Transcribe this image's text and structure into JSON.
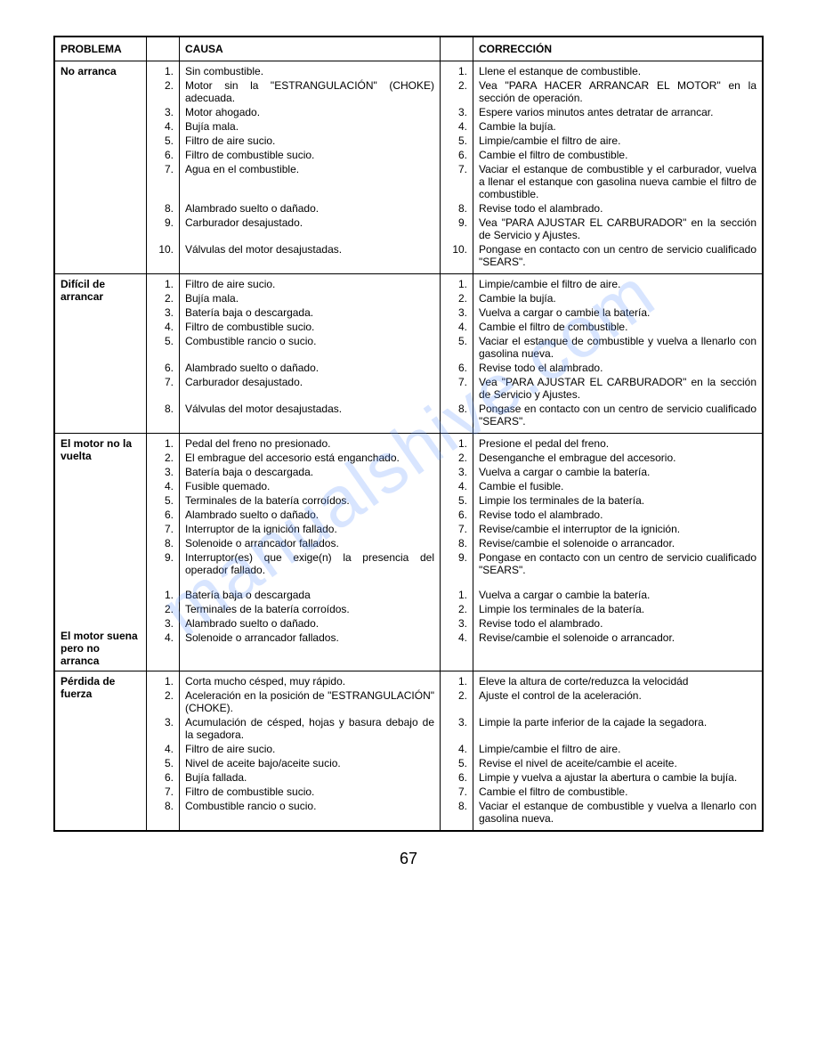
{
  "watermark": "manualshive.com",
  "pageNumber": "67",
  "headers": {
    "problema": "PROBLEMA",
    "causa": "CAUSA",
    "correccion": "CORRECCIÓN"
  },
  "sections": [
    {
      "problem": "No arranca",
      "items": [
        {
          "n": "1.",
          "cause": "Sin combustible.",
          "corr": "Llene el estanque de combustible."
        },
        {
          "n": "2.",
          "cause": "Motor sin la \"ESTRANGULACIÓN\" (CHOKE) adecuada.",
          "corr": "Vea \"PARA HACER ARRANCAR EL MOTOR\" en la sección de operación."
        },
        {
          "n": "3.",
          "cause": "Motor ahogado.",
          "corr": "Espere varios minutos antes detratar de arrancar."
        },
        {
          "n": "4.",
          "cause": "Bujía mala.",
          "corr": "Cambie la bujía."
        },
        {
          "n": "5.",
          "cause": "Filtro de aire sucio.",
          "corr": "Limpie/cambie el filtro de aire."
        },
        {
          "n": "6.",
          "cause": "Filtro de combustible sucio.",
          "corr": "Cambie el filtro de combustible."
        },
        {
          "n": "7.",
          "cause": "Agua en el combustible.",
          "corr": "Vaciar el estanque de combustible y el carburador, vuelva a llenar el estanque con gasolina nueva cambie el filtro de combustible."
        },
        {
          "n": "8.",
          "cause": "Alambrado suelto o dañado.",
          "corr": "Revise todo el alambrado."
        },
        {
          "n": "9.",
          "cause": "Carburador desajustado.",
          "corr": "Vea \"PARA AJUSTAR EL CARBURADOR\" en la sección de Servicio y Ajustes."
        },
        {
          "n": "10.",
          "cause": "Válvulas del motor desajustadas.",
          "corr": "Pongase en contacto con un centro de servicio cualificado \"SEARS\"."
        }
      ]
    },
    {
      "problem": "Difícil de arrancar",
      "items": [
        {
          "n": "1.",
          "cause": "Filtro de aire sucio.",
          "corr": "Limpie/cambie el filtro de aire."
        },
        {
          "n": "2.",
          "cause": "Bujía mala.",
          "corr": "Cambie la bujía."
        },
        {
          "n": "3.",
          "cause": "Batería baja o descargada.",
          "corr": "Vuelva a cargar o cambie la batería."
        },
        {
          "n": "4.",
          "cause": "Filtro de combustible sucio.",
          "corr": "Cambie el filtro de combustible."
        },
        {
          "n": "5.",
          "cause": "Combustible rancio o sucio.",
          "corr": "Vaciar el estanque de combustible y vuelva a llenarlo con gasolina nueva."
        },
        {
          "n": "6.",
          "cause": "Alambrado suelto o dañado.",
          "corr": "Revise todo el alambrado."
        },
        {
          "n": "7.",
          "cause": "Carburador desajustado.",
          "corr": "Vea \"PARA AJUSTAR EL CARBURADOR\" en la sección de Servicio y Ajustes."
        },
        {
          "n": "8.",
          "cause": "Válvulas del motor desajustadas.",
          "corr": "Pongase en contacto con un centro de servicio cualificado \"SEARS\"."
        }
      ]
    },
    {
      "problem": "El motor no la vuelta",
      "items": [
        {
          "n": "1.",
          "cause": "Pedal del freno no presionado.",
          "corr": "Presione el pedal del freno."
        },
        {
          "n": "2.",
          "cause": "El embrague del accesorio está enganchado.",
          "corr": "Desenganche el embrague del accesorio."
        },
        {
          "n": "3.",
          "cause": "Batería baja o descargada.",
          "corr": "Vuelva a cargar o cambie la batería."
        },
        {
          "n": "4.",
          "cause": "Fusible quemado.",
          "corr": "Cambie el fusible."
        },
        {
          "n": "5.",
          "cause": "Terminales de la batería corroídos.",
          "corr": "Limpie los terminales de la batería."
        },
        {
          "n": "6.",
          "cause": "Alambrado suelto o dañado.",
          "corr": "Revise todo el alambrado."
        },
        {
          "n": "7.",
          "cause": "Interruptor de la ignición fallado.",
          "corr": "Revise/cambie el interruptor de la ignición."
        },
        {
          "n": "8.",
          "cause": "Solenoide o arrancador fallados.",
          "corr": "Revise/cambie el solenoide o arrancador."
        },
        {
          "n": "9.",
          "cause": "Interruptor(es) que exige(n) la presencia del operador fallado.",
          "corr": "Pongase en contacto con un centro de servicio cualificado \"SEARS\"."
        }
      ],
      "problem2": "El motor suena pero no arranca",
      "items2": [
        {
          "n": "1.",
          "cause": "Batería baja o descargada",
          "corr": "Vuelva a cargar o cambie la batería."
        },
        {
          "n": "2.",
          "cause": "Terminales de la batería corroídos.",
          "corr": "Limpie los terminales de la batería."
        },
        {
          "n": "3.",
          "cause": "Alambrado suelto o dañado.",
          "corr": "Revise todo el alambrado."
        },
        {
          "n": "4.",
          "cause": "Solenoide o arrancador fallados.",
          "corr": "Revise/cambie el solenoide o arrancador."
        }
      ]
    },
    {
      "problem": "Pérdida de fuerza",
      "items": [
        {
          "n": "1.",
          "cause": "Corta mucho césped, muy rápido.",
          "corr": "Eleve la altura de corte/reduzca la velocidád"
        },
        {
          "n": "2.",
          "cause": "Aceleración en la posición de \"ESTRANGULACIÓN\" (CHOKE).",
          "corr": "Ajuste el control de la aceleración."
        },
        {
          "n": "3.",
          "cause": "Acumulación de césped, hojas y basura debajo de la segadora.",
          "corr": "Limpie la parte inferior de la cajade la segadora."
        },
        {
          "n": "4.",
          "cause": "Filtro de aire sucio.",
          "corr": "Limpie/cambie el filtro de aire."
        },
        {
          "n": "5.",
          "cause": "Nivel de aceite bajo/aceite sucio.",
          "corr": "Revise el nivel de aceite/cambie el aceite."
        },
        {
          "n": "6.",
          "cause": "Bujía fallada.",
          "corr": "Limpie y vuelva a ajustar la abertura o cambie la bujía."
        },
        {
          "n": "7.",
          "cause": "Filtro de combustible sucio.",
          "corr": "Cambie el filtro de combustible."
        },
        {
          "n": "8.",
          "cause": "Combustible rancio o sucio.",
          "corr": "Vaciar el estanque de combustible y vuelva a llenarlo con gasolina nueva."
        }
      ]
    }
  ]
}
